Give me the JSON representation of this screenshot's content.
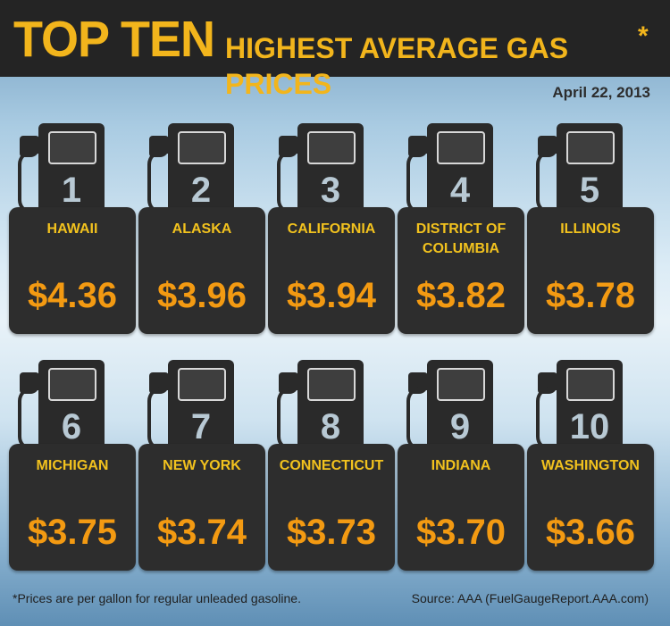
{
  "header": {
    "title_big": "TOP TEN",
    "title_small": "HIGHEST AVERAGE GAS PRICES",
    "title_star": "*"
  },
  "date": "April 22, 2013",
  "items": [
    {
      "rank": "1",
      "state": "HAWAII",
      "price": "$4.36"
    },
    {
      "rank": "2",
      "state": "ALASKA",
      "price": "$3.96"
    },
    {
      "rank": "3",
      "state": "CALIFORNIA",
      "price": "$3.94"
    },
    {
      "rank": "4",
      "state": "DISTRICT OF COLUMBIA",
      "price": "$3.82"
    },
    {
      "rank": "5",
      "state": "ILLINOIS",
      "price": "$3.78"
    },
    {
      "rank": "6",
      "state": "MICHIGAN",
      "price": "$3.75"
    },
    {
      "rank": "7",
      "state": "NEW YORK",
      "price": "$3.74"
    },
    {
      "rank": "8",
      "state": "CONNECTICUT",
      "price": "$3.73"
    },
    {
      "rank": "9",
      "state": "INDIANA",
      "price": "$3.70"
    },
    {
      "rank": "10",
      "state": "WASHINGTON",
      "price": "$3.66"
    }
  ],
  "footnote": "*Prices are per gallon for regular unleaded gasoline.",
  "source": "Source: AAA (FuelGaugeReport.AAA.com)",
  "colors": {
    "header_bg": "#242424",
    "title": "#f2b51c",
    "state_label": "#f2c21e",
    "price": "#f39a12",
    "pump": "#2d2d2d"
  },
  "icons": [
    "gas-pump-icon"
  ]
}
